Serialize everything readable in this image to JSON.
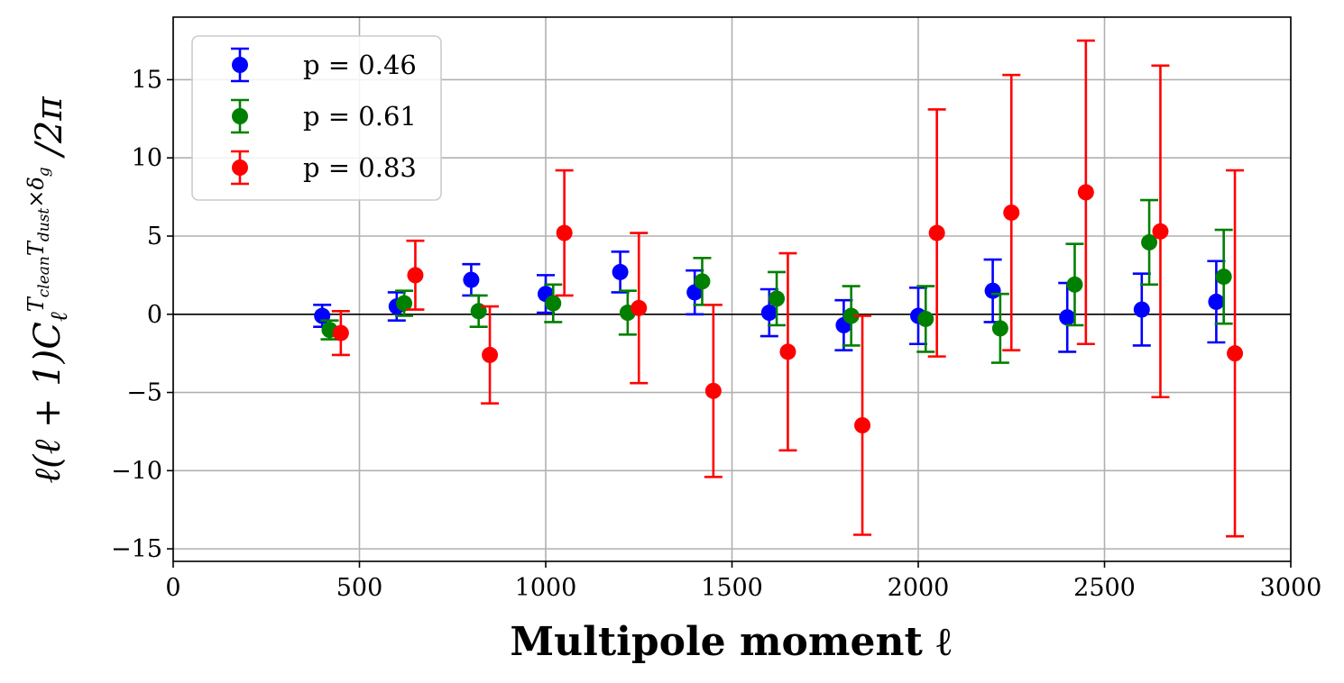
{
  "chart_data": {
    "type": "scatter",
    "title": "",
    "xlabel": "Multipole moment ℓ",
    "ylabel": "ℓ(ℓ + 1)Cℓ^{T_clean T_dust × δ_g} / 2π",
    "xlim": [
      0,
      3000
    ],
    "ylim": [
      -15.8,
      19.0
    ],
    "xticks": [
      0,
      500,
      1000,
      1500,
      2000,
      2500,
      3000
    ],
    "xtick_labels": [
      "0",
      "500",
      "1000",
      "1500",
      "2000",
      "2500",
      "3000"
    ],
    "yticks": [
      -15,
      -10,
      -5,
      0,
      5,
      10,
      15
    ],
    "ytick_labels": [
      "−15",
      "−10",
      "−5",
      "0",
      "5",
      "10",
      "15"
    ],
    "grid": true,
    "zero_line": true,
    "legend_position": "top-left",
    "series": [
      {
        "name": "p = 0.46",
        "color": "#0000ff",
        "x": [
          400,
          600,
          800,
          1000,
          1200,
          1400,
          1600,
          1800,
          2000,
          2200,
          2400,
          2600,
          2800
        ],
        "y": [
          -0.1,
          0.5,
          2.2,
          1.3,
          2.7,
          1.4,
          0.1,
          -0.7,
          -0.1,
          1.5,
          -0.2,
          0.3,
          0.8
        ],
        "yerr": [
          0.7,
          0.9,
          1.0,
          1.2,
          1.3,
          1.4,
          1.5,
          1.6,
          1.8,
          2.0,
          2.2,
          2.3,
          2.6
        ]
      },
      {
        "name": "p = 0.61",
        "color": "#008000",
        "x": [
          420,
          620,
          820,
          1020,
          1220,
          1420,
          1620,
          1820,
          2020,
          2220,
          2420,
          2620,
          2820
        ],
        "y": [
          -1.0,
          0.7,
          0.2,
          0.7,
          0.1,
          2.1,
          1.0,
          -0.1,
          -0.3,
          -0.9,
          1.9,
          4.6,
          2.4
        ],
        "yerr": [
          0.6,
          0.8,
          1.0,
          1.2,
          1.4,
          1.5,
          1.7,
          1.9,
          2.1,
          2.2,
          2.6,
          2.7,
          3.0
        ]
      },
      {
        "name": "p = 0.83",
        "color": "#ff0000",
        "x": [
          450,
          650,
          850,
          1050,
          1250,
          1450,
          1650,
          1850,
          2050,
          2250,
          2450,
          2650,
          2850
        ],
        "y": [
          -1.2,
          2.5,
          -2.6,
          5.2,
          0.4,
          -4.9,
          -2.4,
          -7.1,
          5.2,
          6.5,
          7.8,
          5.3,
          -2.5
        ],
        "yerr": [
          1.4,
          2.2,
          3.1,
          4.0,
          4.8,
          5.5,
          6.3,
          7.0,
          7.9,
          8.8,
          9.7,
          10.6,
          11.7
        ]
      }
    ]
  }
}
